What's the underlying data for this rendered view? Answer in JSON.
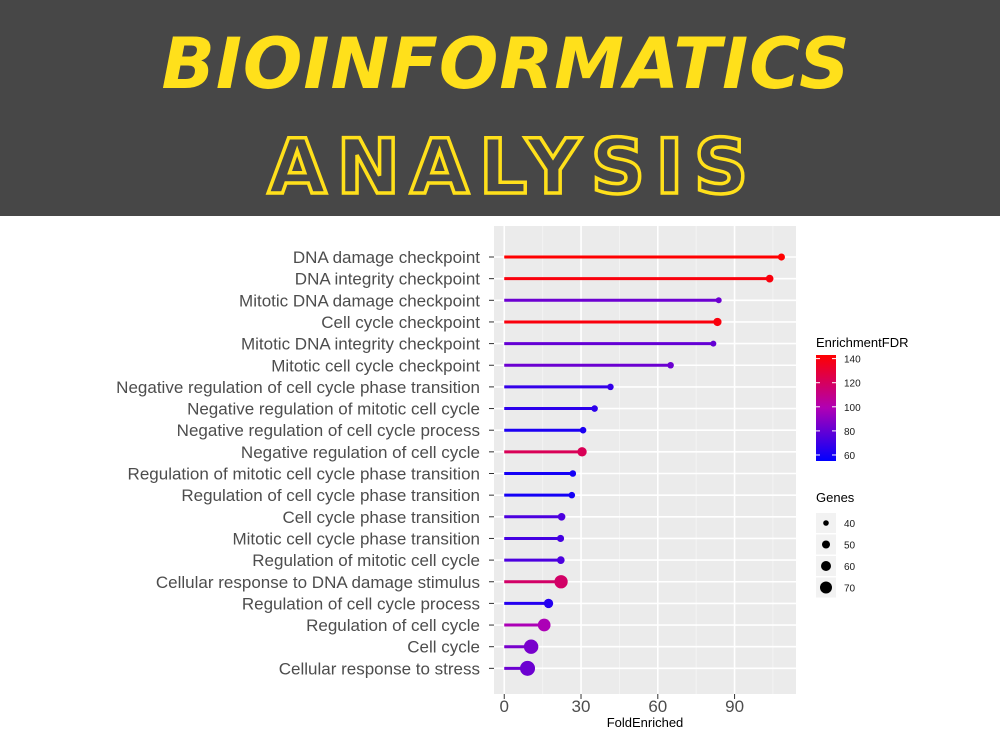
{
  "banner": {
    "line1": "BIOINFORMATICS",
    "line2": "ANALYSIS",
    "text_color": "#FFE01B",
    "background": "#474747"
  },
  "chart_data": {
    "type": "lollipop",
    "xlabel": "FoldEnriched",
    "xlim": [
      -4,
      114
    ],
    "xticks": [
      0,
      30,
      60,
      90
    ],
    "grid": true,
    "legend_placement": "right",
    "color_legend": {
      "title": "EnrichmentFDR",
      "ticks": [
        60,
        80,
        100,
        120,
        140
      ],
      "range": [
        55,
        143
      ],
      "low_color": "#0000FF",
      "high_color": "#FF0000"
    },
    "size_legend": {
      "title": "Genes",
      "ticks": [
        40,
        50,
        60,
        70
      ]
    },
    "categories": [
      "DNA damage checkpoint",
      "DNA integrity checkpoint",
      "Mitotic DNA damage checkpoint",
      "Cell cycle checkpoint",
      "Mitotic DNA integrity checkpoint",
      "Mitotic cell cycle checkpoint",
      "Negative regulation of cell cycle phase transition",
      "Negative regulation of mitotic cell cycle",
      "Negative regulation of cell cycle process",
      "Negative regulation of cell cycle",
      "Regulation of mitotic cell cycle phase transition",
      "Regulation of cell cycle phase transition",
      "Cell cycle phase transition",
      "Mitotic cell cycle phase transition",
      "Regulation of mitotic cell cycle",
      "Cellular response to DNA damage stimulus",
      "Regulation of cell cycle process",
      "Regulation of cell cycle",
      "Cell cycle",
      "Cellular response to stress"
    ],
    "fold_enriched": [
      108.3,
      103.7,
      83.8,
      83.3,
      81.7,
      65.0,
      41.5,
      35.3,
      30.8,
      30.4,
      26.8,
      26.4,
      22.4,
      22.0,
      22.1,
      22.2,
      17.3,
      15.6,
      10.5,
      9.1
    ],
    "enrichment_fdr": [
      143,
      140,
      82,
      140,
      80,
      82,
      68,
      66,
      62,
      122,
      60,
      60,
      74,
      72,
      74,
      118,
      64,
      98,
      85,
      82
    ],
    "genes": [
      40,
      42,
      36,
      44,
      36,
      38,
      38,
      38,
      38,
      48,
      38,
      38,
      42,
      40,
      42,
      62,
      48,
      60,
      66,
      68
    ]
  }
}
